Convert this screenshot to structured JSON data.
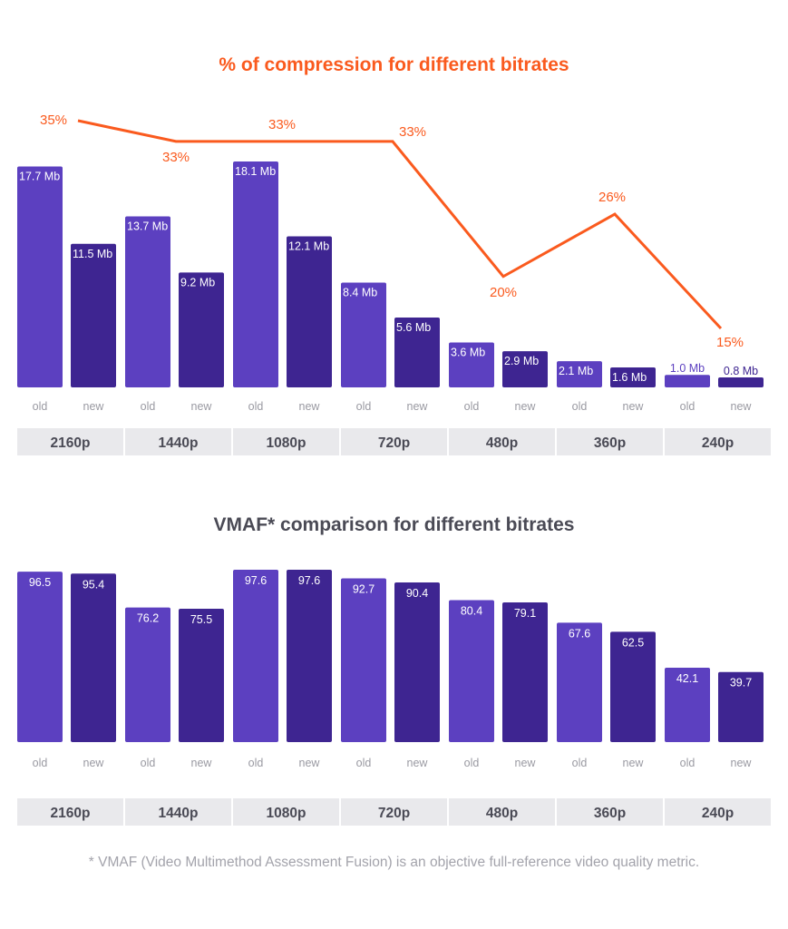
{
  "colors": {
    "old": "#5c40c0",
    "new": "#3e2591",
    "line": "#fa5a1e",
    "group_bg": "#e9e9ec",
    "group_text": "#4a4a55",
    "sub_text": "#9a9aa2"
  },
  "chart_data": [
    {
      "type": "bar",
      "title": "% of compression for different bitrates",
      "categories": [
        "2160p",
        "1440p",
        "1080p",
        "720p",
        "480p",
        "360p",
        "240p"
      ],
      "sub_categories": [
        "old",
        "new"
      ],
      "unit": "Mb",
      "series": [
        {
          "name": "old",
          "values": [
            17.7,
            13.7,
            18.1,
            8.4,
            3.6,
            2.1,
            1.0
          ],
          "labels": [
            "17.7 Mb",
            "13.7 Mb",
            "18.1 Mb",
            "8.4 Mb",
            "3.6 Mb",
            "2.1 Mb",
            "1.0 Mb"
          ]
        },
        {
          "name": "new",
          "values": [
            11.5,
            9.2,
            12.1,
            5.6,
            2.9,
            1.6,
            0.8
          ],
          "labels": [
            "11.5 Mb",
            "9.2 Mb",
            "12.1 Mb",
            "5.6 Mb",
            "2.9 Mb",
            "1.6 Mb",
            "0.8 Mb"
          ]
        }
      ],
      "line_series": {
        "name": "% of compression",
        "type": "line",
        "values": [
          35,
          33,
          33,
          33,
          20,
          26,
          15
        ],
        "labels": [
          "35%",
          "33%",
          "33%",
          "33%",
          "20%",
          "26%",
          "15%"
        ]
      },
      "xlabel": "",
      "ylabel": "",
      "ylim": [
        0,
        18.1
      ],
      "grid": false
    },
    {
      "type": "bar",
      "title": "VMAF* comparison for different bitrates",
      "categories": [
        "2160p",
        "1440p",
        "1080p",
        "720p",
        "480p",
        "360p",
        "240p"
      ],
      "sub_categories": [
        "old",
        "new"
      ],
      "series": [
        {
          "name": "old",
          "values": [
            96.5,
            76.2,
            97.6,
            92.7,
            80.4,
            67.6,
            42.1
          ],
          "labels": [
            "96.5",
            "76.2",
            "97.6",
            "92.7",
            "80.4",
            "67.6",
            "42.1"
          ]
        },
        {
          "name": "new",
          "values": [
            95.4,
            75.5,
            97.6,
            90.4,
            79.1,
            62.5,
            39.7
          ],
          "labels": [
            "95.4",
            "75.5",
            "97.6",
            "90.4",
            "79.1",
            "62.5",
            "39.7"
          ]
        }
      ],
      "xlabel": "",
      "ylabel": "",
      "ylim": [
        0,
        97.6
      ],
      "grid": false
    }
  ],
  "footnote": "* VMAF (Video Multimethod Assessment Fusion) is an objective full-reference video quality metric."
}
